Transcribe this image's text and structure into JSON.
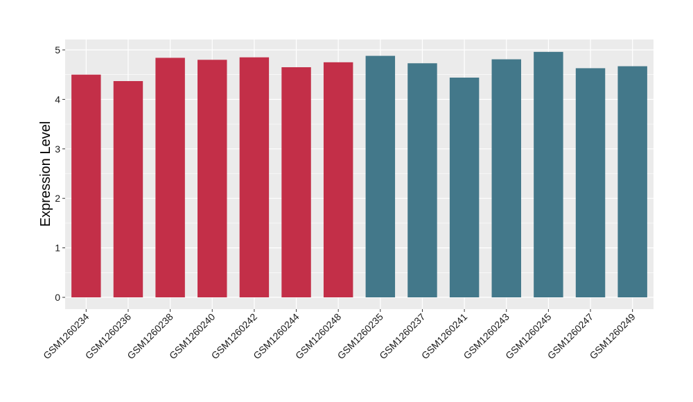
{
  "chart_data": {
    "type": "bar",
    "title": "",
    "xlabel": "",
    "ylabel": "Expression Level",
    "ylim": [
      0,
      5.2
    ],
    "yticks": [
      0,
      1,
      2,
      3,
      4,
      5
    ],
    "grid": true,
    "categories": [
      "GSM1260234",
      "GSM1260236",
      "GSM1260238",
      "GSM1260240",
      "GSM1260242",
      "GSM1260244",
      "GSM1260248",
      "GSM1260235",
      "GSM1260237",
      "GSM1260241",
      "GSM1260243",
      "GSM1260245",
      "GSM1260247",
      "GSM1260249"
    ],
    "values": [
      4.5,
      4.37,
      4.84,
      4.8,
      4.85,
      4.65,
      4.75,
      4.88,
      4.73,
      4.44,
      4.81,
      4.96,
      4.63,
      4.67
    ],
    "groups": [
      0,
      0,
      0,
      0,
      0,
      0,
      0,
      1,
      1,
      1,
      1,
      1,
      1,
      1
    ],
    "colors": [
      "#c32f48",
      "#43788a"
    ],
    "panel_background": "#ebebeb",
    "grid_color": "#ffffff"
  }
}
